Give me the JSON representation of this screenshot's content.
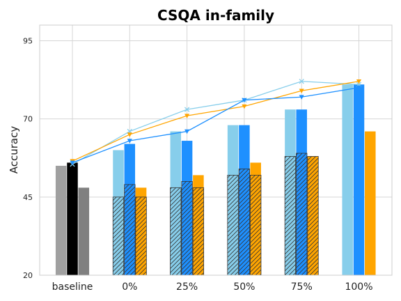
{
  "chart_data": {
    "type": "bar",
    "title": "CSQA in-family",
    "xlabel": "",
    "ylabel": "Accuracy",
    "ylim": [
      20,
      100
    ],
    "yticks": [
      20,
      45,
      70,
      95
    ],
    "categories": [
      "baseline",
      "0%",
      "25%",
      "50%",
      "75%",
      "100%"
    ],
    "grid": true,
    "colors": {
      "light_blue": "#87ceeb",
      "dodger_blue": "#1e90ff",
      "orange": "#ffa500",
      "baseline_gray": "#a0a0a0",
      "baseline_black": "#000000",
      "baseline_dark_gray": "#808080",
      "edge": "#333333"
    },
    "baseline_bars": [
      55,
      56,
      48
    ],
    "stacked_bars": [
      {
        "color": "light_blue",
        "hatched_values": [
          null,
          45,
          48,
          52,
          58,
          null
        ],
        "total_values": [
          null,
          60,
          66,
          68,
          73,
          81
        ]
      },
      {
        "color": "dodger_blue",
        "hatched_values": [
          null,
          49,
          50,
          54,
          59,
          null
        ],
        "total_values": [
          null,
          62,
          63,
          68,
          73,
          81
        ]
      },
      {
        "color": "orange",
        "hatched_values": [
          null,
          45,
          48,
          52,
          58,
          null
        ],
        "total_values": [
          null,
          48,
          52,
          56,
          58,
          66
        ]
      }
    ],
    "lines": [
      {
        "color": "#87ceeb",
        "marker": "x",
        "values": [
          null,
          66,
          73,
          76,
          82,
          81
        ]
      },
      {
        "color": "#ffa500",
        "marker": "triangle-down",
        "values": [
          null,
          65,
          71,
          74,
          79,
          82
        ]
      },
      {
        "color": "#1e90ff",
        "marker": "triangle-down",
        "values": [
          56,
          63,
          66,
          76,
          77,
          80
        ]
      }
    ],
    "line_start_points": [
      {
        "color": "#87ceeb",
        "marker": "x",
        "value": 55.5
      },
      {
        "color": "#ffa500",
        "marker": "triangle-down",
        "value": 56.5
      }
    ]
  }
}
